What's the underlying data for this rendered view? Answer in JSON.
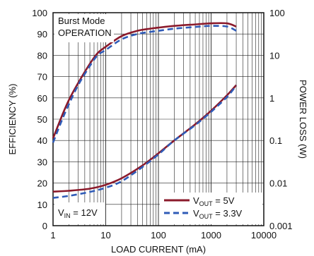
{
  "chart_data": {
    "type": "line",
    "title": "",
    "xlabel": "LOAD CURRENT (mA)",
    "ylabel": "EFFICIENCY (%)",
    "y2label": "POWER LOSS (W)",
    "x_scale": "log",
    "xlim": [
      1,
      10000
    ],
    "ylim": [
      0,
      100
    ],
    "y2_scale": "log",
    "y2lim": [
      0.001,
      100
    ],
    "grid": true,
    "x_ticks": [
      "1",
      "10",
      "100",
      "1000",
      "10000"
    ],
    "y_ticks": [
      "0",
      "10",
      "20",
      "30",
      "40",
      "50",
      "60",
      "70",
      "80",
      "90",
      "100"
    ],
    "y2_ticks": [
      "0.001",
      "0.01",
      "0.1",
      "1",
      "10",
      "100"
    ],
    "annotations": {
      "mode_line1": "Burst Mode",
      "mode_line2": "OPERATION",
      "vin": "V",
      "vin_sub": "IN",
      "vin_val": " = 12V"
    },
    "legend": {
      "placement": "bottom-right",
      "items": [
        {
          "pre": "V",
          "sub": "OUT",
          "post": " = 5V",
          "color": "#8b1a2b",
          "dash": "solid"
        },
        {
          "pre": "V",
          "sub": "OUT",
          "post": " = 3.3V",
          "color": "#2f5bb7",
          "dash": "dashed"
        }
      ]
    },
    "series": [
      {
        "name": "VOUT = 5V efficiency",
        "axis": "left",
        "color": "#8b1a2b",
        "dash": "solid",
        "x": [
          1,
          1.5,
          2,
          3,
          5,
          7,
          10,
          20,
          40,
          70,
          100,
          200,
          500,
          1000,
          2000,
          3000
        ],
        "y": [
          41,
          52,
          59,
          67,
          76,
          81,
          84,
          89,
          91.5,
          92.5,
          93,
          93.8,
          94.5,
          95,
          95,
          93.5
        ]
      },
      {
        "name": "VOUT = 3.3V efficiency",
        "axis": "left",
        "color": "#2f5bb7",
        "dash": "dashed",
        "x": [
          1,
          1.5,
          2,
          3,
          5,
          7,
          10,
          20,
          40,
          70,
          100,
          200,
          500,
          1000,
          2000,
          3000
        ],
        "y": [
          39,
          50,
          57,
          66,
          75,
          80,
          82.5,
          87.5,
          90,
          91,
          91.5,
          92.5,
          93.3,
          93.8,
          93.5,
          91.5
        ]
      },
      {
        "name": "VOUT = 5V power loss",
        "axis": "right",
        "color": "#8b1a2b",
        "dash": "solid",
        "x": [
          1,
          2,
          5,
          10,
          20,
          50,
          100,
          200,
          500,
          1000,
          2000,
          3000
        ],
        "y": [
          0.0063,
          0.0066,
          0.0074,
          0.0091,
          0.013,
          0.026,
          0.05,
          0.1,
          0.24,
          0.5,
          1.15,
          2.0
        ]
      },
      {
        "name": "VOUT = 3.3V power loss",
        "axis": "right",
        "color": "#2f5bb7",
        "dash": "dashed",
        "x": [
          1,
          2,
          5,
          10,
          20,
          50,
          100,
          200,
          500,
          1000,
          2000,
          3000
        ],
        "y": [
          0.0045,
          0.005,
          0.0062,
          0.0078,
          0.011,
          0.024,
          0.047,
          0.1,
          0.23,
          0.47,
          1.05,
          1.95
        ]
      }
    ]
  }
}
